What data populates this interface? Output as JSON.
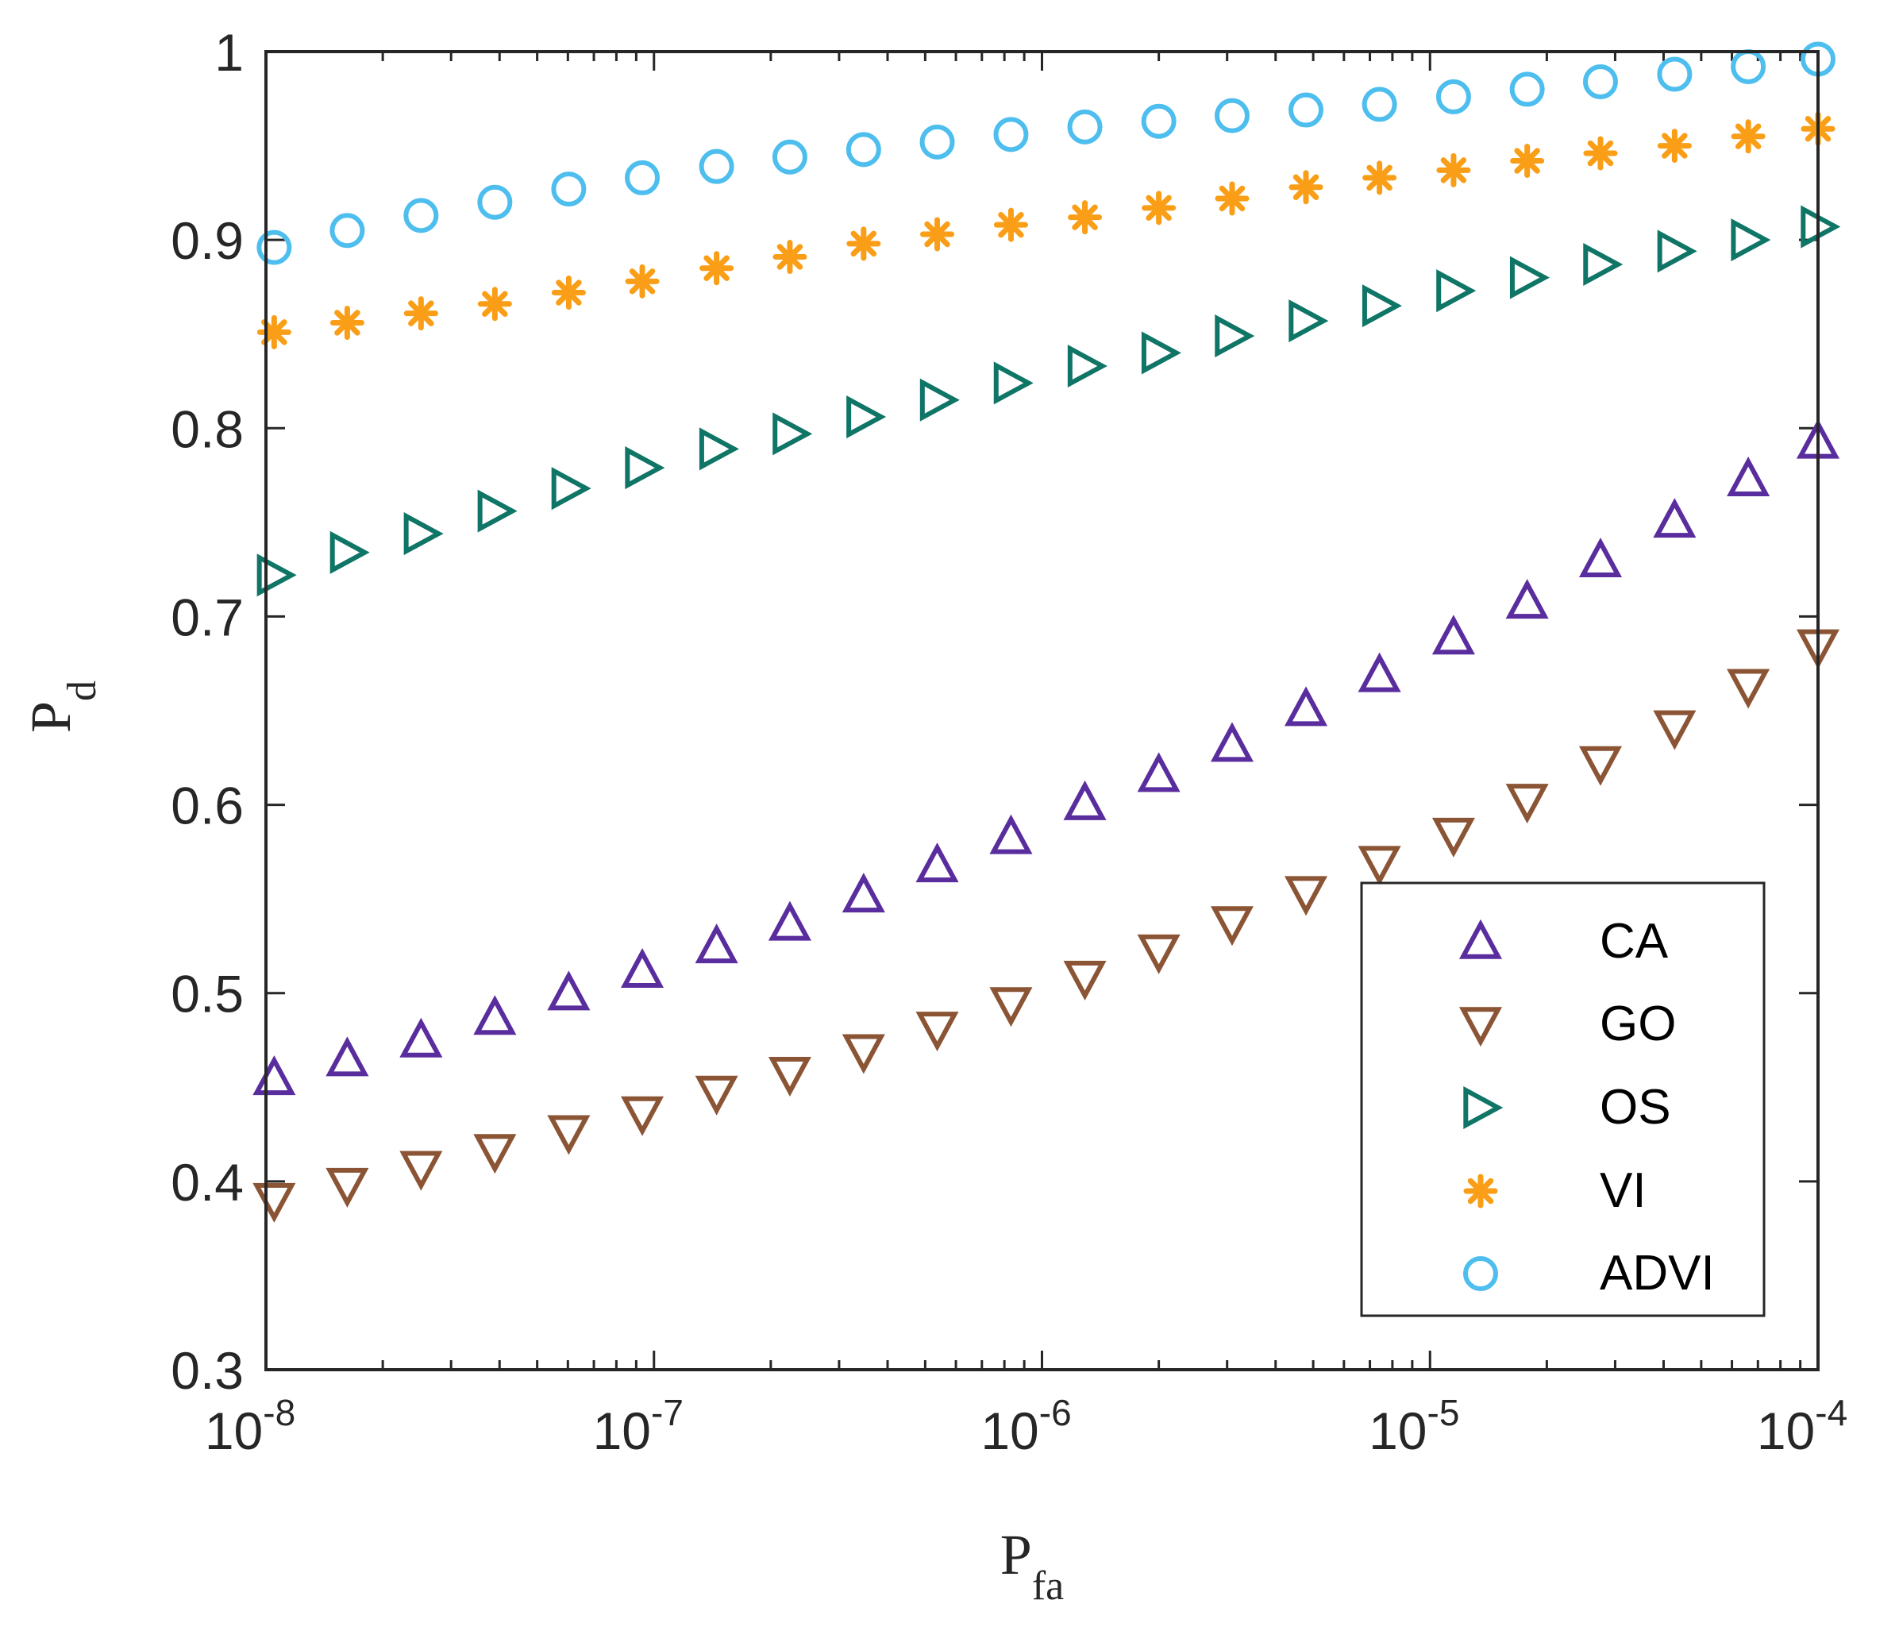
{
  "chart_data": {
    "type": "scatter",
    "title": "",
    "xlabel": "P",
    "xlabel_sub": "fa",
    "ylabel": "P",
    "ylabel_sub": "d",
    "xscale": "log",
    "xlim": [
      1e-08,
      0.0001
    ],
    "ylim": [
      0.3,
      1.0
    ],
    "x_ticks": [
      {
        "base": "10",
        "exp": "-8"
      },
      {
        "base": "10",
        "exp": "-7"
      },
      {
        "base": "10",
        "exp": "-6"
      },
      {
        "base": "10",
        "exp": "-5"
      },
      {
        "base": "10",
        "exp": "-4"
      }
    ],
    "y_ticks": [
      "0.3",
      "0.4",
      "0.5",
      "0.6",
      "0.7",
      "0.8",
      "0.9",
      "1"
    ],
    "legend_position": "lower-right",
    "grid": false,
    "x": [
      1.05e-08,
      1.62e-08,
      2.51e-08,
      3.89e-08,
      6.03e-08,
      9.33e-08,
      1.45e-07,
      2.24e-07,
      3.47e-07,
      5.37e-07,
      8.32e-07,
      1.29e-06,
      2e-06,
      3.09e-06,
      4.79e-06,
      7.41e-06,
      1.15e-05,
      1.78e-05,
      2.75e-05,
      4.27e-05,
      6.61e-05,
      0.0001
    ],
    "series": [
      {
        "name": "CA",
        "marker": "triangle-up",
        "color": "#5a2d9e",
        "values": [
          0.455,
          0.465,
          0.475,
          0.487,
          0.5,
          0.512,
          0.525,
          0.537,
          0.552,
          0.568,
          0.583,
          0.601,
          0.616,
          0.632,
          0.651,
          0.669,
          0.689,
          0.708,
          0.73,
          0.751,
          0.773,
          0.793
        ]
      },
      {
        "name": "GO",
        "marker": "triangle-down",
        "color": "#8b5535",
        "values": [
          0.39,
          0.398,
          0.407,
          0.416,
          0.426,
          0.436,
          0.447,
          0.457,
          0.469,
          0.481,
          0.494,
          0.508,
          0.522,
          0.537,
          0.553,
          0.569,
          0.584,
          0.602,
          0.622,
          0.641,
          0.663,
          0.684
        ]
      },
      {
        "name": "OS",
        "marker": "triangle-right",
        "color": "#0f7566",
        "values": [
          0.722,
          0.734,
          0.744,
          0.756,
          0.768,
          0.779,
          0.789,
          0.797,
          0.806,
          0.815,
          0.824,
          0.833,
          0.84,
          0.849,
          0.857,
          0.865,
          0.873,
          0.88,
          0.887,
          0.894,
          0.9,
          0.907
        ]
      },
      {
        "name": "VI",
        "marker": "asterisk",
        "color": "#f99e16",
        "values": [
          0.851,
          0.856,
          0.861,
          0.866,
          0.872,
          0.878,
          0.885,
          0.891,
          0.898,
          0.903,
          0.908,
          0.912,
          0.917,
          0.922,
          0.928,
          0.933,
          0.937,
          0.942,
          0.946,
          0.95,
          0.955,
          0.959
        ]
      },
      {
        "name": "ADVI",
        "marker": "circle",
        "color": "#4dbeee",
        "values": [
          0.896,
          0.905,
          0.913,
          0.92,
          0.927,
          0.933,
          0.939,
          0.944,
          0.948,
          0.952,
          0.956,
          0.96,
          0.963,
          0.966,
          0.969,
          0.972,
          0.976,
          0.98,
          0.984,
          0.988,
          0.992,
          0.996
        ]
      }
    ]
  }
}
